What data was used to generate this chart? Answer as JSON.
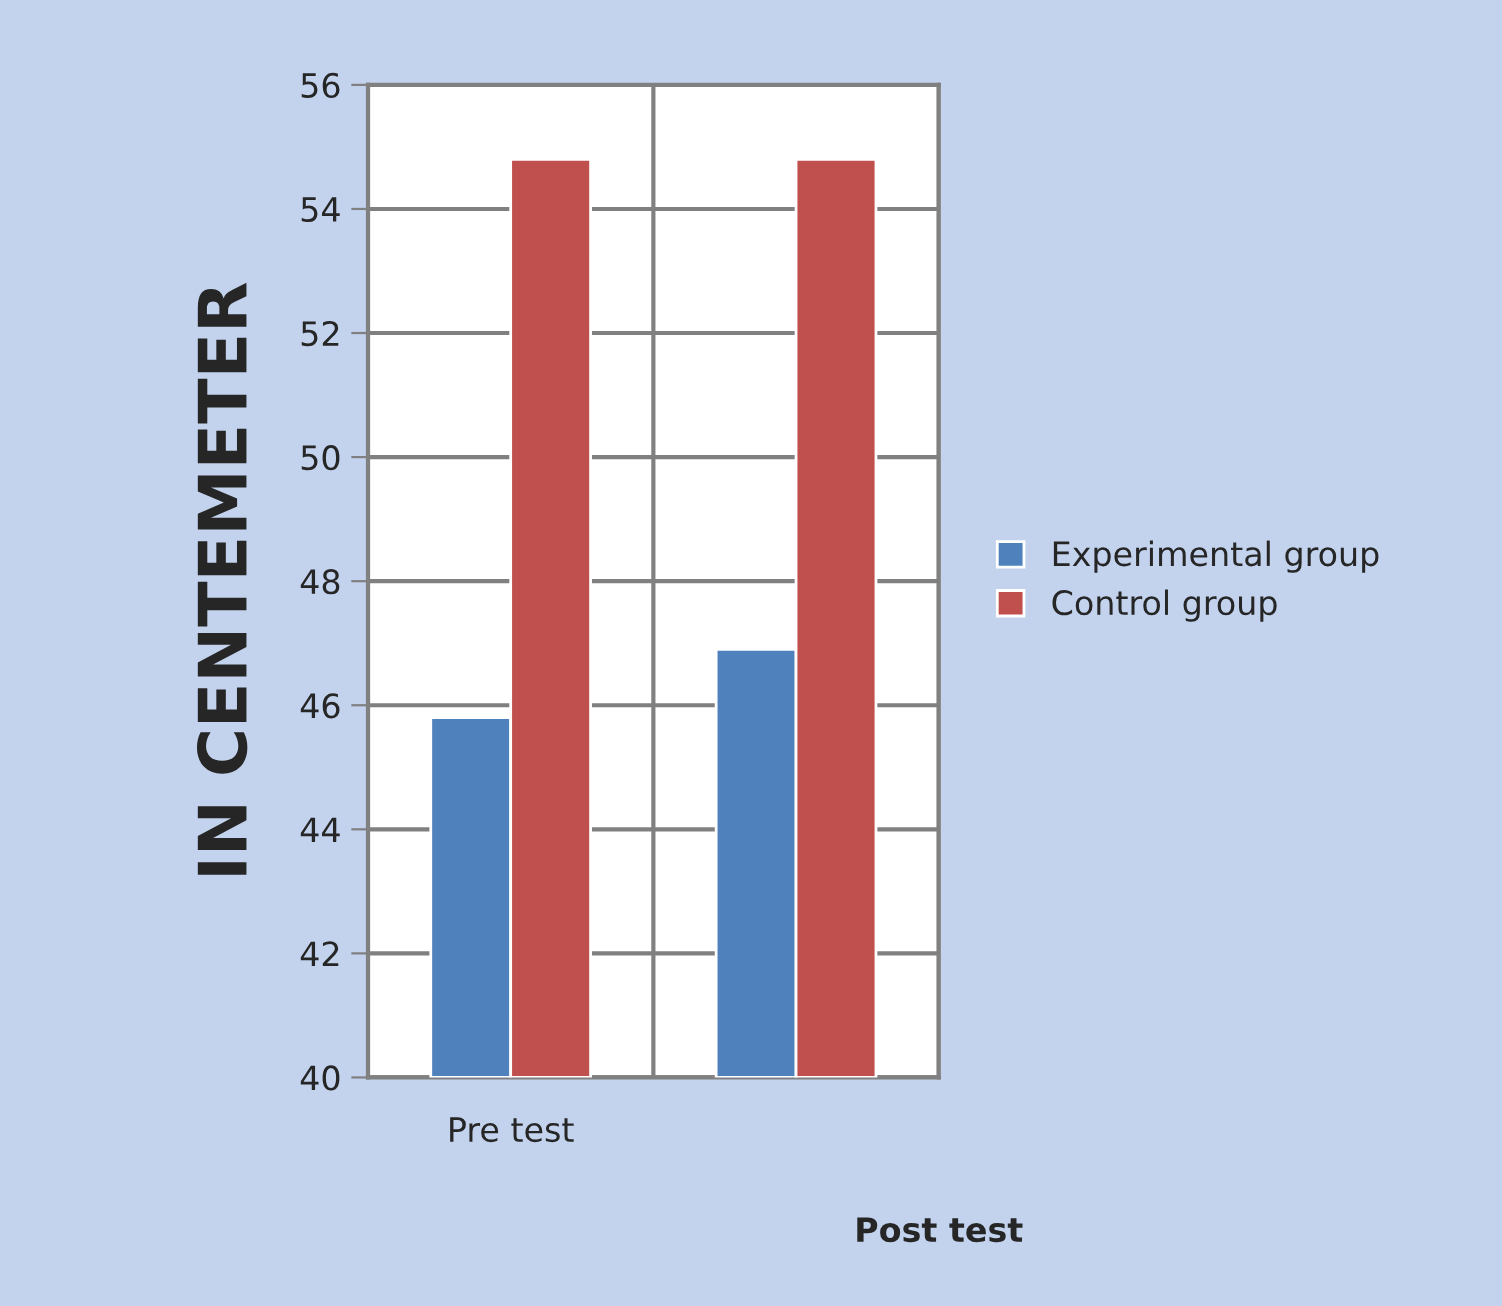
{
  "chart_data": {
    "type": "bar",
    "categories": [
      "Pre test",
      null
    ],
    "xlabel": "Post test",
    "ylabel": "IN CENTEMETER",
    "series": [
      {
        "name": "Experimental group",
        "color": "#4f81bd",
        "values": [
          45.8,
          46.9
        ]
      },
      {
        "name": "Control group",
        "color": "#c0504d",
        "values": [
          54.8,
          54.8
        ]
      }
    ],
    "ylim": [
      40,
      56
    ],
    "yticks": [
      40,
      42,
      44,
      46,
      48,
      50,
      52,
      54,
      56
    ],
    "grid": true,
    "legend": "right"
  }
}
